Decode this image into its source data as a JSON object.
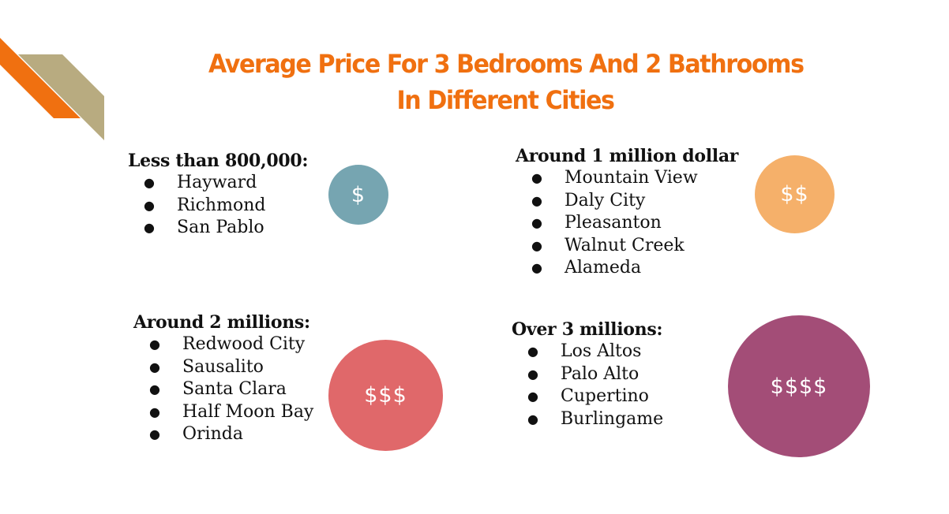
{
  "title": {
    "line1": "Average Price For 3 Bedrooms And 2 Bathrooms",
    "line2": "In Different Cities"
  },
  "colors": {
    "title": "#f07010",
    "deco_orange": "#f07010",
    "deco_tan": "#b8ab80"
  },
  "groups": [
    {
      "heading": "Less than 800,000:",
      "cities": [
        "Hayward",
        "Richmond",
        "San Pablo"
      ],
      "symbol": "$",
      "circle_color": "#76a5b1"
    },
    {
      "heading": "Around 1 million dollar",
      "cities": [
        "Mountain View",
        "Daly City",
        "Pleasanton",
        "Walnut Creek",
        "Alameda"
      ],
      "symbol": "$$",
      "circle_color": "#f5b06a"
    },
    {
      "heading": "Around 2 millions:",
      "cities": [
        "Redwood City",
        "Sausalito",
        "Santa Clara",
        "Half Moon Bay",
        "Orinda"
      ],
      "symbol": "$$$",
      "circle_color": "#e0686a"
    },
    {
      "heading": "Over 3 millions:",
      "cities": [
        "Los Altos",
        "Palo Alto",
        "Cupertino",
        "Burlingame"
      ],
      "symbol": "$$$$",
      "circle_color": "#a34d77"
    }
  ],
  "bullet_char": "●"
}
